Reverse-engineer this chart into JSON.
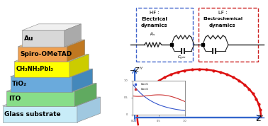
{
  "layers": [
    {
      "name": "Glass substrate",
      "color": "#c8ecf8",
      "side": "#a0c8e0",
      "top": "#daf0ff"
    },
    {
      "name": "ITO",
      "color": "#88dd88",
      "side": "#60aa60",
      "top": "#aaeaaa"
    },
    {
      "name": "TiO₂",
      "color": "#6aaadc",
      "side": "#4488bb",
      "top": "#8ec8f0"
    },
    {
      "name": "CH₃NH₃PbI₃",
      "color": "#ffff00",
      "side": "#cccc00",
      "top": "#ffff88"
    },
    {
      "name": "Spiro-OMeTAD",
      "color": "#f0a050",
      "side": "#c07820",
      "top": "#ffc878"
    },
    {
      "name": "Au",
      "color": "#d8d8d8",
      "side": "#aaaaaa",
      "top": "#f0f0f0"
    }
  ],
  "right_bg": "#a8d8f0",
  "circuit_bg": "#ffffff",
  "hf_border": "#4466cc",
  "lf_border": "#cc2222",
  "wire_color": "#222222",
  "axis_color": "#3366cc",
  "semi_color": "#dd1111",
  "inset_bg": "#ffffff",
  "inset_line1": "#3355cc",
  "inset_line2": "#cc3333"
}
